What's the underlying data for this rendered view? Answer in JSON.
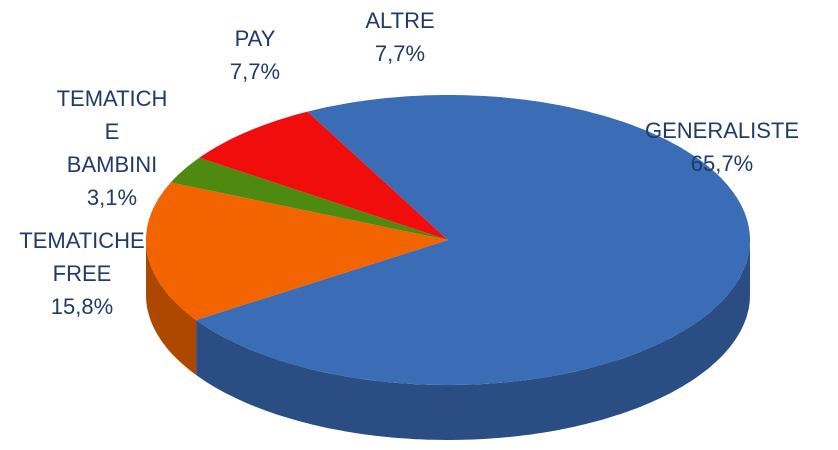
{
  "chart_data": {
    "type": "pie",
    "categories": [
      "GENERALISTE",
      "TEMATICHE FREE",
      "TEMATICHE BAMBINI",
      "PAY",
      "ALTRE"
    ],
    "values": [
      65.7,
      15.8,
      3.1,
      7.7,
      7.7
    ],
    "value_labels": [
      "65,7%",
      "15,8%",
      "3,1%",
      "7,7%",
      "7,7%"
    ],
    "colors": [
      "#3a6db6",
      "#f26400",
      "#4f8a10",
      "#f20d0d",
      "#3a6db6"
    ]
  }
}
